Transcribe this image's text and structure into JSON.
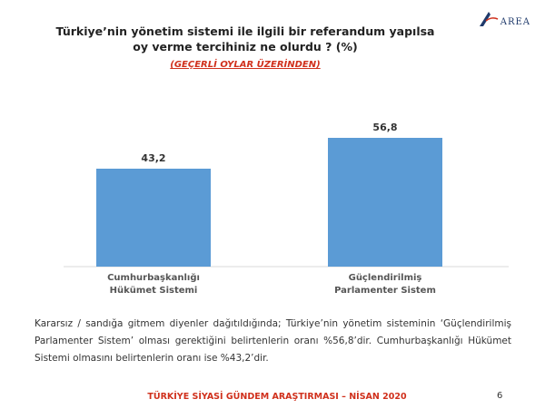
{
  "brand": {
    "logo_text": "AREA"
  },
  "header": {
    "title_line1": "Türkiye’nin yönetim sistemi ile ilgili bir referandum yapılsa",
    "title_line2": "oy verme tercihiniz ne olurdu ? (%)",
    "subtitle": "(GEÇERLİ OYLAR ÜZERİNDEN)"
  },
  "chart_data": {
    "type": "bar",
    "categories": [
      [
        "Cumhurbaşkanlığı",
        "Hükümet Sistemi"
      ],
      [
        "Güçlendirilmiş",
        "Parlamenter Sistem"
      ]
    ],
    "values": [
      43.2,
      56.8
    ],
    "value_labels": [
      "43,2",
      "56,8"
    ],
    "bar_color": "#5b9bd5",
    "ylim": [
      0,
      100
    ],
    "grid": false,
    "legend": "none"
  },
  "caption": "Kararsız / sandığa gitmem diyenler dağıtıldığında; Türkiye’nin yönetim sisteminin ‘Güçlendirilmiş Parlamenter Sistem’ olması gerektiğini belirtenlerin oranı %56,8’dir. Cumhurbaşkanlığı Hükümet Sistemi olmasını belirtenlerin oranı ise %43,2’dir.",
  "footer": {
    "text": "TÜRKİYE SİYASİ GÜNDEM ARAŞTIRMASI – NİSAN 2020",
    "page": "6"
  }
}
